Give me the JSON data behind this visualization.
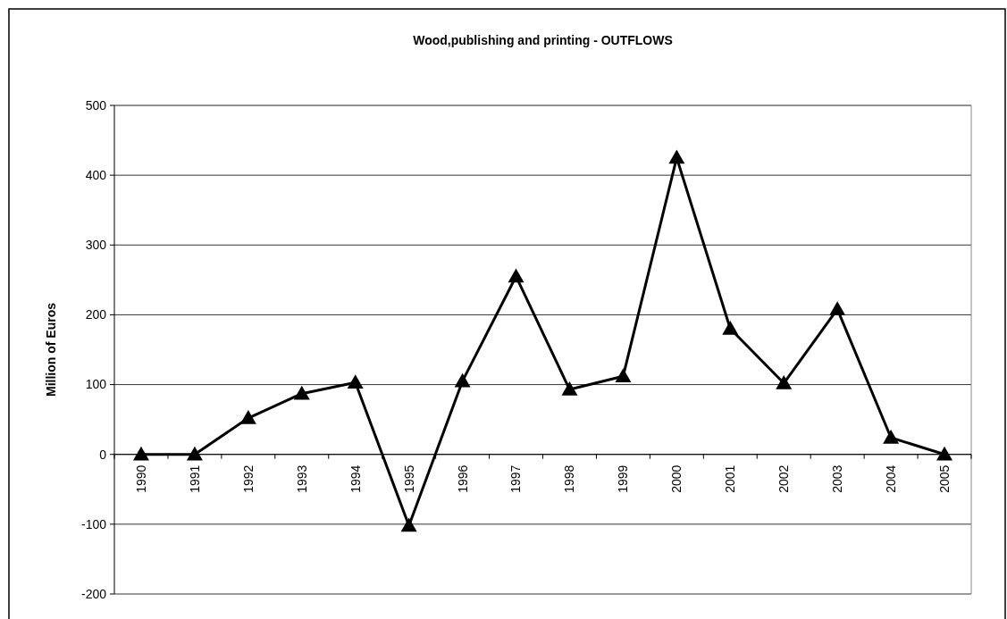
{
  "chart_data": {
    "type": "line",
    "title": "Wood,publishing and printing - OUTFLOWS",
    "ylabel": "Million of Euros",
    "categories": [
      "1990",
      "1991",
      "1992",
      "1993",
      "1994",
      "1995",
      "1996",
      "1997",
      "1998",
      "1999",
      "2000",
      "2001",
      "2002",
      "2003",
      "2004",
      "2005"
    ],
    "series": [
      {
        "color": "#000000",
        "values": [
          0,
          0,
          52,
          87,
          103,
          -102,
          105,
          255,
          93,
          112,
          425,
          180,
          102,
          208,
          24,
          0
        ]
      }
    ],
    "ylim": [
      -200,
      500
    ],
    "yticks": [
      -200,
      -100,
      0,
      100,
      200,
      300,
      400,
      500
    ],
    "grid": "y",
    "marker": "triangle",
    "line_style": "solid"
  }
}
